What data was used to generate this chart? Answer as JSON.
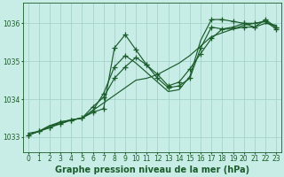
{
  "background_color": "#c8ece6",
  "grid_color": "#a0cfc8",
  "line_color": "#1a5c2a",
  "ylabel_values": [
    1033,
    1034,
    1035,
    1036
  ],
  "xlabel_values": [
    0,
    1,
    2,
    3,
    4,
    5,
    6,
    7,
    8,
    9,
    10,
    11,
    12,
    13,
    14,
    15,
    16,
    17,
    18,
    19,
    20,
    21,
    22,
    23
  ],
  "ylim": [
    1032.6,
    1036.55
  ],
  "xlim": [
    -0.5,
    23.5
  ],
  "xlabel": "Graphe pression niveau de la mer (hPa)",
  "lines": [
    {
      "x": [
        0,
        1,
        2,
        3,
        4,
        5,
        6,
        7,
        8,
        9,
        10,
        11,
        12,
        13,
        14,
        15,
        16,
        17,
        18,
        19,
        20,
        21,
        22,
        23
      ],
      "y": [
        1033.05,
        1033.15,
        1033.25,
        1033.35,
        1033.45,
        1033.5,
        1033.7,
        1033.9,
        1034.1,
        1034.3,
        1034.5,
        1034.55,
        1034.65,
        1034.8,
        1034.95,
        1035.15,
        1035.4,
        1035.65,
        1035.75,
        1035.85,
        1035.95,
        1036.0,
        1036.05,
        1035.9
      ],
      "marked_x": [
        0,
        1,
        2,
        3,
        4,
        5,
        22,
        23
      ],
      "marked_y": [
        1033.05,
        1033.15,
        1033.25,
        1033.35,
        1033.45,
        1033.5,
        1036.05,
        1035.9
      ]
    },
    {
      "x": [
        0,
        1,
        2,
        3,
        4,
        5,
        6,
        7,
        8,
        9,
        10,
        11,
        12,
        13,
        14,
        15,
        16,
        17,
        18,
        19,
        20,
        21,
        22,
        23
      ],
      "y": [
        1033.05,
        1033.15,
        1033.25,
        1033.4,
        1033.45,
        1033.5,
        1033.8,
        1034.05,
        1034.55,
        1034.85,
        1035.1,
        1034.9,
        1034.65,
        1034.35,
        1034.45,
        1034.8,
        1035.2,
        1035.6,
        1035.85,
        1035.9,
        1036.0,
        1036.0,
        1036.05,
        1035.85
      ],
      "marked_x": [
        0,
        1,
        2,
        3,
        4,
        5,
        6,
        7,
        8,
        9,
        10,
        11,
        12,
        13,
        14,
        15,
        16,
        17,
        18,
        19,
        20,
        21,
        22,
        23
      ],
      "marked_y": [
        1033.05,
        1033.15,
        1033.25,
        1033.4,
        1033.45,
        1033.5,
        1033.8,
        1034.05,
        1034.55,
        1034.85,
        1035.1,
        1034.9,
        1034.65,
        1034.35,
        1034.45,
        1034.8,
        1035.2,
        1035.6,
        1035.85,
        1035.9,
        1036.0,
        1036.0,
        1036.05,
        1035.85
      ]
    },
    {
      "x": [
        0,
        1,
        2,
        3,
        4,
        5,
        6,
        7,
        8,
        9,
        10,
        11,
        12,
        13,
        14,
        15,
        16,
        17,
        18,
        19,
        20,
        21,
        22,
        23
      ],
      "y": [
        1033.05,
        1033.15,
        1033.3,
        1033.35,
        1033.45,
        1033.5,
        1033.65,
        1033.75,
        1035.35,
        1035.7,
        1035.3,
        1034.9,
        1034.55,
        1034.3,
        1034.35,
        1034.55,
        1035.35,
        1035.9,
        1035.85,
        1035.85,
        1035.9,
        1035.9,
        1036.1,
        1035.9
      ],
      "marked_x": [
        6,
        7,
        8,
        9,
        10,
        11,
        12,
        13,
        14,
        15,
        16,
        17,
        20,
        21,
        22,
        23
      ],
      "marked_y": [
        1033.65,
        1033.75,
        1035.35,
        1035.7,
        1035.3,
        1034.9,
        1034.55,
        1034.3,
        1034.35,
        1034.55,
        1035.35,
        1035.9,
        1035.9,
        1035.9,
        1036.1,
        1035.9
      ]
    },
    {
      "x": [
        0,
        1,
        2,
        3,
        4,
        5,
        6,
        7,
        8,
        9,
        10,
        11,
        12,
        13,
        14,
        15,
        16,
        17,
        18,
        19,
        20,
        21,
        22,
        23
      ],
      "y": [
        1033.1,
        1033.15,
        1033.3,
        1033.4,
        1033.45,
        1033.5,
        1033.7,
        1034.15,
        1034.85,
        1035.15,
        1034.95,
        1034.7,
        1034.45,
        1034.2,
        1034.25,
        1034.6,
        1035.55,
        1036.1,
        1036.1,
        1036.05,
        1036.0,
        1035.9,
        1036.0,
        1035.95
      ],
      "marked_x": [
        6,
        7,
        8,
        9,
        17,
        18,
        19,
        20
      ],
      "marked_y": [
        1033.7,
        1034.15,
        1034.85,
        1035.15,
        1036.1,
        1036.1,
        1036.05,
        1036.0
      ]
    }
  ],
  "marker": "P",
  "markersize": 4,
  "linewidth": 0.85,
  "tick_fontsize": 5.5,
  "xlabel_fontsize": 7
}
